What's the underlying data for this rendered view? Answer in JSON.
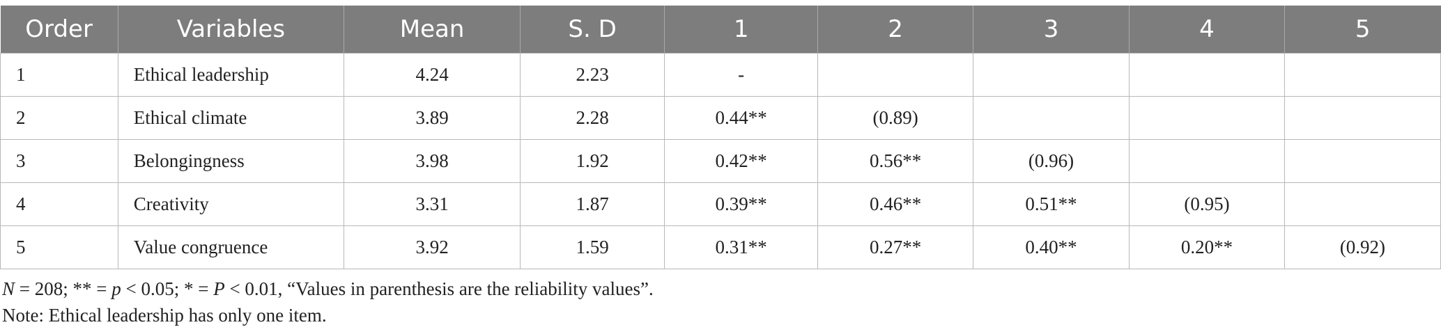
{
  "table": {
    "headers": [
      "Order",
      "Variables",
      "Mean",
      "S. D",
      "1",
      "2",
      "3",
      "4",
      "5"
    ],
    "rows": [
      [
        "1",
        "Ethical leadership",
        "4.24",
        "2.23",
        "-",
        "",
        "",
        "",
        ""
      ],
      [
        "2",
        "Ethical climate",
        "3.89",
        "2.28",
        "0.44**",
        "(0.89)",
        "",
        "",
        ""
      ],
      [
        "3",
        "Belongingness",
        "3.98",
        "1.92",
        "0.42**",
        "0.56**",
        "(0.96)",
        "",
        ""
      ],
      [
        "4",
        "Creativity",
        "3.31",
        "1.87",
        "0.39**",
        "0.46**",
        "0.51**",
        "(0.95)",
        ""
      ],
      [
        "5",
        "Value congruence",
        "3.92",
        "1.59",
        "0.31**",
        "0.27**",
        "0.40**",
        "0.20**",
        "(0.92)"
      ]
    ]
  },
  "notes": {
    "line1": {
      "n_symbol": "N",
      "n_value": " = 208; ** = ",
      "p1": "p",
      "p1_rest": " < 0.05; * = ",
      "p2": "P",
      "p2_rest": " < 0.01, “Values in parenthesis are the reliability values”."
    },
    "line2": "Note: Ethical leadership has only one item."
  }
}
